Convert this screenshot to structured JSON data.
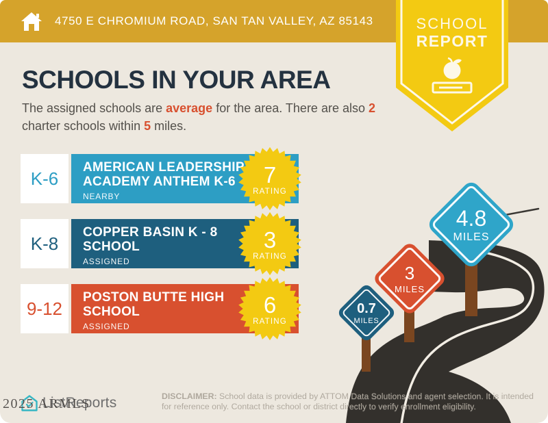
{
  "header": {
    "address": "4750 E CHROMIUM ROAD, SAN TAN VALLEY, AZ 85143"
  },
  "badge": {
    "line1": "SCHOOL",
    "line2": "REPORT"
  },
  "title": "SCHOOLS IN YOUR AREA",
  "intro": {
    "pre": "The assigned schools are ",
    "highlight_quality": "average",
    "mid": " for the area. There are also ",
    "highlight_count": "2",
    "line2_pre": "charter schools within ",
    "highlight_radius": "5",
    "line2_post": " miles."
  },
  "labels": {
    "rating": "RATING"
  },
  "schools": [
    {
      "grade": "K-6",
      "name": "AMERICAN LEADERSHIP ACADEMY ANTHEM K-6",
      "status": "NEARBY",
      "rating": "7",
      "color": "#2D9EC4"
    },
    {
      "grade": "K-8",
      "name": "COPPER BASIN K - 8 SCHOOL",
      "status": "ASSIGNED",
      "rating": "3",
      "color": "#1E5F7E"
    },
    {
      "grade": "9-12",
      "name": "POSTON BUTTE HIGH SCHOOL",
      "status": "ASSIGNED",
      "rating": "6",
      "color": "#D8502F"
    }
  ],
  "signs": [
    {
      "distance": "0.7",
      "unit": "MILES",
      "color": "#1E5F7E"
    },
    {
      "distance": "3",
      "unit": "MILES",
      "color": "#D8502F"
    },
    {
      "distance": "4.8",
      "unit": "MILES",
      "color": "#2FA5C9"
    }
  ],
  "footer": {
    "logo_text": "ListReports",
    "watermark": "2025 ARMLS",
    "disclaimer_label": "DISCLAIMER:",
    "disclaimer_line1": "School data is provided by ATTOM Data Solutions and agent selection. It is intended",
    "disclaimer_line2": "for reference only. Contact the school or district directly to verify enrollment eligibility."
  },
  "colors": {
    "header_gold": "#D5A32B",
    "badge_yellow": "#F3CA12",
    "background_beige": "#EDE8DF",
    "title_navy": "#243240",
    "accent_red": "#D8502F",
    "cyan": "#2D9EC4",
    "navy": "#1E5F7E",
    "road_charcoal": "#33302C",
    "post_brown": "#7A4620",
    "logo_teal": "#35B6C3"
  }
}
